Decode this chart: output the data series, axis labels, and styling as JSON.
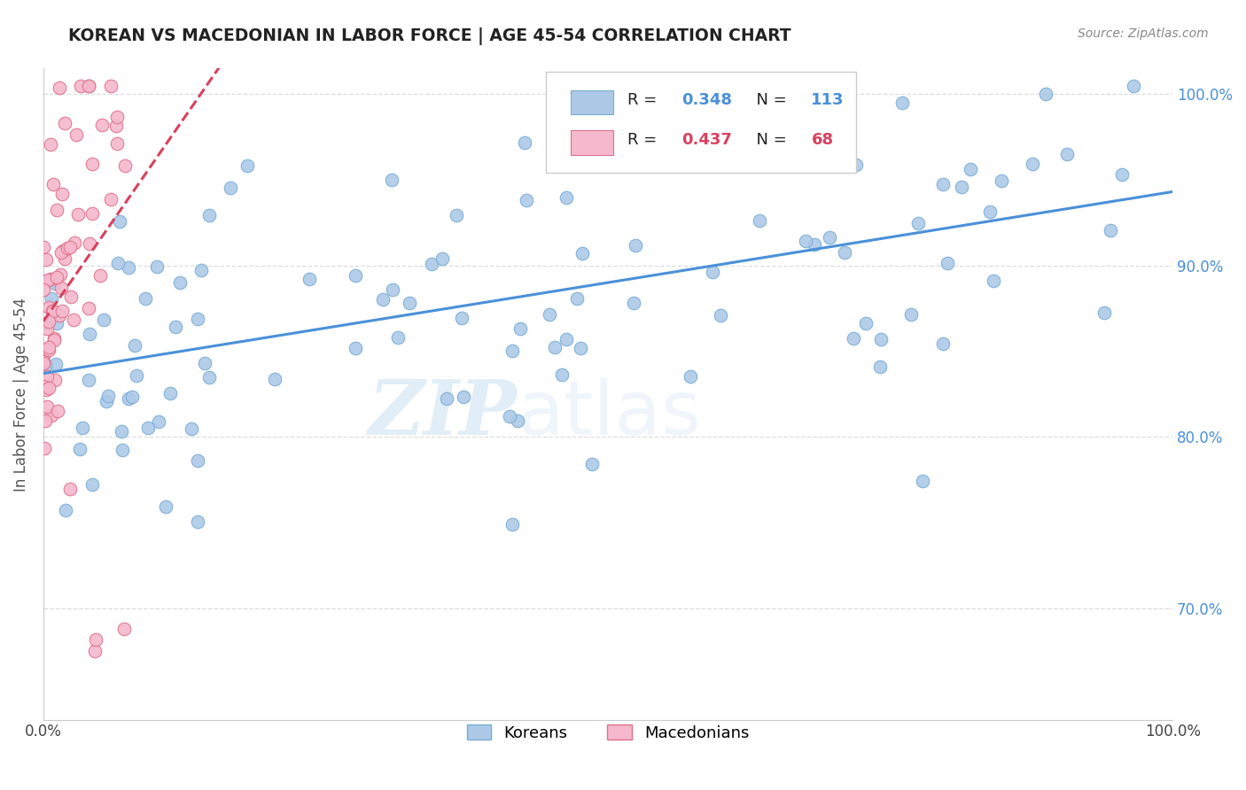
{
  "title": "KOREAN VS MACEDONIAN IN LABOR FORCE | AGE 45-54 CORRELATION CHART",
  "source_text": "Source: ZipAtlas.com",
  "ylabel": "In Labor Force | Age 45-54",
  "xlim": [
    0.0,
    1.0
  ],
  "ylim": [
    0.635,
    1.015
  ],
  "korean_color": "#adc9e8",
  "korean_edge_color": "#7aadd4",
  "macedonian_color": "#f5b8cc",
  "macedonian_edge_color": "#e0708a",
  "trend_korean_color": "#4a90d9",
  "trend_macedonian_color": "#d94060",
  "korean_R": 0.348,
  "korean_N": 113,
  "macedonian_R": 0.437,
  "macedonian_N": 68,
  "legend_label_korean": "Koreans",
  "legend_label_macedonian": "Macedonians",
  "watermark_zip": "ZIP",
  "watermark_atlas": "atlas",
  "background_color": "#ffffff",
  "grid_color": "#dddddd",
  "title_color": "#222222",
  "axis_label_color": "#555555",
  "right_axis_color": "#4a90d9",
  "right_yticks": [
    0.7,
    0.8,
    0.9,
    1.0
  ],
  "right_ytick_labels": [
    "70.0%",
    "80.0%",
    "90.0%",
    "100.0%"
  ]
}
